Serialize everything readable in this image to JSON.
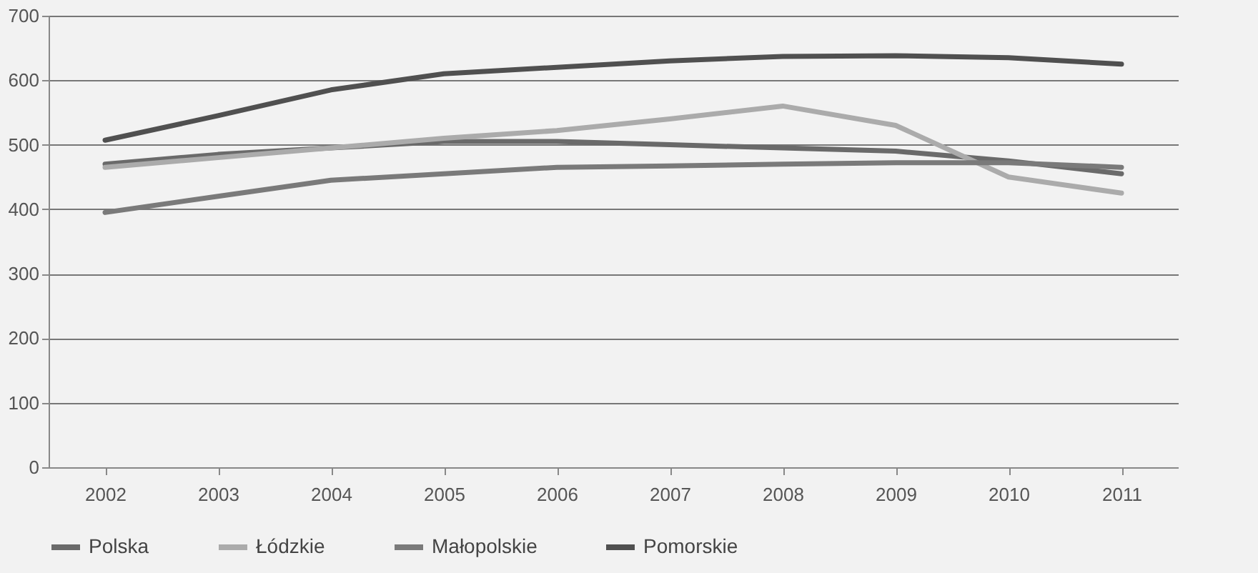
{
  "chart_data": {
    "type": "line",
    "categories": [
      "2002",
      "2003",
      "2004",
      "2005",
      "2006",
      "2007",
      "2008",
      "2009",
      "2010",
      "2011"
    ],
    "series": [
      {
        "name": "Polska",
        "color": "#6a6a6a",
        "values": [
          470,
          485,
          495,
          505,
          505,
          500,
          495,
          490,
          475,
          455
        ]
      },
      {
        "name": "Łódzkie",
        "color": "#ababab",
        "values": [
          465,
          480,
          495,
          510,
          522,
          540,
          560,
          530,
          450,
          425
        ]
      },
      {
        "name": "Małopolskie",
        "color": "#7a7a7a",
        "values": [
          395,
          420,
          445,
          455,
          465,
          467,
          470,
          472,
          472,
          465
        ]
      },
      {
        "name": "Pomorskie",
        "color": "#505050",
        "values": [
          507,
          545,
          585,
          610,
          620,
          630,
          637,
          638,
          635,
          625
        ]
      }
    ],
    "ylim": [
      0,
      700
    ],
    "yticks": [
      0,
      100,
      200,
      300,
      400,
      500,
      600,
      700
    ],
    "grid": "y",
    "legend": "bottom",
    "marker": "none",
    "line_style": "solid"
  }
}
